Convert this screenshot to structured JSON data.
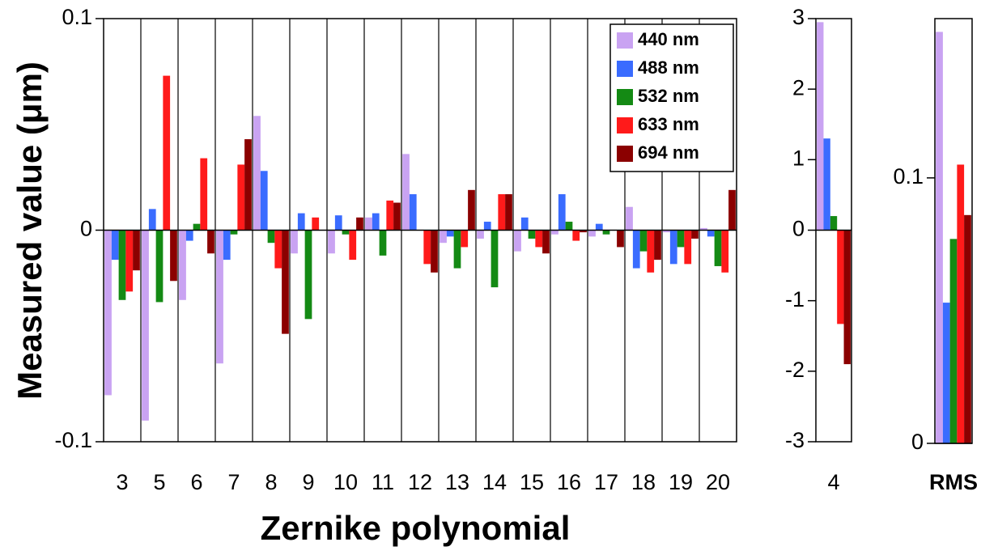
{
  "chart_data": [
    {
      "type": "bar",
      "y_label": "Measured value (μm)",
      "x_label": "Zernike polynomial",
      "categories": [
        "3",
        "5",
        "6",
        "7",
        "8",
        "9",
        "10",
        "11",
        "12",
        "13",
        "14",
        "15",
        "16",
        "17",
        "18",
        "19",
        "20"
      ],
      "ylim": [
        -0.1,
        0.1
      ],
      "yticks": [
        -0.1,
        0,
        0.1
      ],
      "legend": "top-right",
      "series": [
        {
          "name": "440 nm",
          "color": "#c9a3f2",
          "values": [
            -0.078,
            -0.09,
            -0.033,
            -0.063,
            0.054,
            -0.011,
            -0.011,
            0.006,
            0.036,
            -0.006,
            -0.004,
            -0.01,
            -0.002,
            -0.003,
            0.011,
            -0.001,
            0.001
          ]
        },
        {
          "name": "488 nm",
          "color": "#3a6cff",
          "values": [
            -0.014,
            0.01,
            -0.005,
            -0.014,
            0.028,
            0.008,
            0.007,
            0.008,
            0.017,
            -0.003,
            0.004,
            0.006,
            0.017,
            0.003,
            -0.018,
            -0.016,
            -0.003
          ]
        },
        {
          "name": "532 nm",
          "color": "#148a14",
          "values": [
            -0.033,
            -0.034,
            0.003,
            -0.002,
            -0.006,
            -0.042,
            -0.002,
            -0.012,
            0,
            -0.018,
            -0.027,
            -0.004,
            0.004,
            -0.002,
            -0.01,
            -0.008,
            -0.017
          ]
        },
        {
          "name": "633 nm",
          "color": "#ff1a1a",
          "values": [
            -0.029,
            0.073,
            0.034,
            0.031,
            -0.018,
            0.006,
            -0.014,
            0.014,
            -0.016,
            -0.008,
            0.017,
            -0.008,
            -0.005,
            0,
            -0.02,
            -0.016,
            -0.02
          ]
        },
        {
          "name": "694 nm",
          "color": "#8b0000",
          "values": [
            -0.019,
            -0.024,
            -0.011,
            0.043,
            -0.049,
            0,
            0.006,
            0.013,
            -0.02,
            0.019,
            0.017,
            -0.011,
            -0.001,
            -0.008,
            -0.014,
            -0.004,
            0.019
          ]
        }
      ]
    },
    {
      "type": "bar",
      "categories": [
        "4"
      ],
      "ylim": [
        -3,
        3
      ],
      "yticks": [
        -3,
        -2,
        -1,
        0,
        1,
        2,
        3
      ],
      "series": [
        {
          "color": "#c9a3f2",
          "values": [
            2.95
          ]
        },
        {
          "color": "#3a6cff",
          "values": [
            1.3
          ]
        },
        {
          "color": "#148a14",
          "values": [
            0.2
          ]
        },
        {
          "color": "#ff1a1a",
          "values": [
            -1.33
          ]
        },
        {
          "color": "#8b0000",
          "values": [
            -1.9
          ]
        }
      ]
    },
    {
      "type": "bar",
      "categories": [
        "RMS"
      ],
      "ylim": [
        0,
        0.16
      ],
      "yticks": [
        0,
        0.1
      ],
      "series": [
        {
          "color": "#c9a3f2",
          "values": [
            0.155
          ]
        },
        {
          "color": "#3a6cff",
          "values": [
            0.053
          ]
        },
        {
          "color": "#148a14",
          "values": [
            0.077
          ]
        },
        {
          "color": "#ff1a1a",
          "values": [
            0.105
          ]
        },
        {
          "color": "#8b0000",
          "values": [
            0.086
          ]
        }
      ]
    }
  ]
}
